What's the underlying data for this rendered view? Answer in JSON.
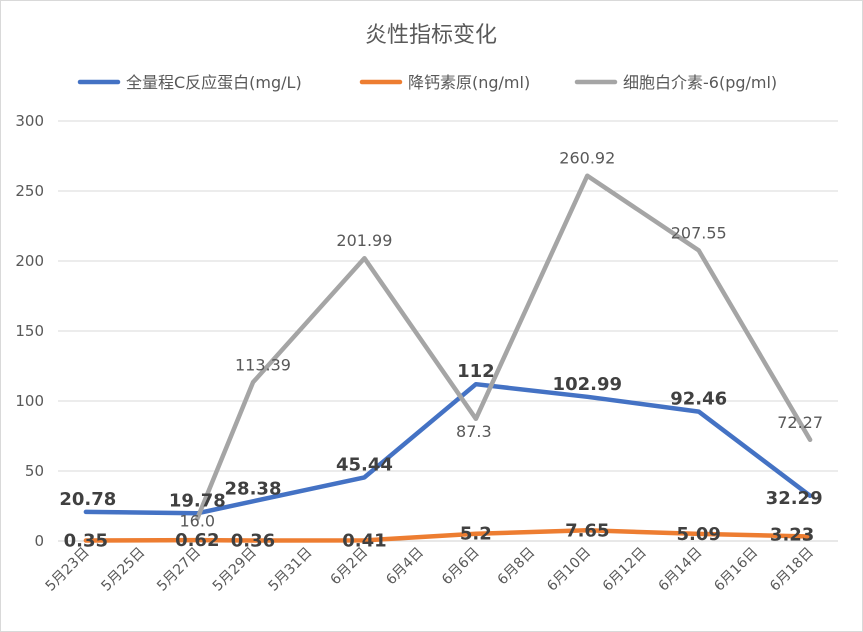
{
  "chart_data": {
    "type": "line",
    "title": "炎性指标变化",
    "categories": [
      "5月23日",
      "5月25日",
      "5月27日",
      "5月29日",
      "5月31日",
      "6月2日",
      "6月4日",
      "6月6日",
      "6月8日",
      "6月10日",
      "6月12日",
      "6月14日",
      "6月16日",
      "6月18日"
    ],
    "x_dates": [
      "5月23日",
      "5月27日",
      "5月29日",
      "6月2日",
      "6月6日",
      "6月10日",
      "6月14日",
      "6月18日"
    ],
    "ylim": [
      0,
      300
    ],
    "yticks": [
      0,
      50,
      100,
      150,
      200,
      250,
      300
    ],
    "grid": true,
    "legend_position": "top",
    "series": [
      {
        "name": "全量程C反应蛋白(mg/L)",
        "color": "#4472c4",
        "points": [
          {
            "x": "5月23日",
            "y": 20.78,
            "label": "20.78"
          },
          {
            "x": "5月27日",
            "y": 19.78,
            "label": "19.78"
          },
          {
            "x": "5月29日",
            "y": 28.38,
            "label": "28.38"
          },
          {
            "x": "6月2日",
            "y": 45.44,
            "label": "45.44"
          },
          {
            "x": "6月6日",
            "y": 112,
            "label": "112"
          },
          {
            "x": "6月10日",
            "y": 102.99,
            "label": "102.99"
          },
          {
            "x": "6月14日",
            "y": 92.46,
            "label": "92.46"
          },
          {
            "x": "6月18日",
            "y": 32.29,
            "label": "32.29"
          }
        ]
      },
      {
        "name": "降钙素原(ng/ml)",
        "color": "#ed7d31",
        "points": [
          {
            "x": "5月23日",
            "y": 0.35,
            "label": "0.35"
          },
          {
            "x": "5月27日",
            "y": 0.62,
            "label": "0.62"
          },
          {
            "x": "5月29日",
            "y": 0.36,
            "label": "0.36"
          },
          {
            "x": "6月2日",
            "y": 0.41,
            "label": "0.41"
          },
          {
            "x": "6月6日",
            "y": 5.2,
            "label": "5.2"
          },
          {
            "x": "6月10日",
            "y": 7.65,
            "label": "7.65"
          },
          {
            "x": "6月14日",
            "y": 5.09,
            "label": "5.09"
          },
          {
            "x": "6月18日",
            "y": 3.23,
            "label": "3.23"
          }
        ]
      },
      {
        "name": "细胞白介素-6(pg/ml)",
        "color": "#a5a5a5",
        "points": [
          {
            "x": "5月27日",
            "y": 16.0,
            "label": "16.0"
          },
          {
            "x": "5月29日",
            "y": 113.39,
            "label": "113.39"
          },
          {
            "x": "6月2日",
            "y": 201.99,
            "label": "201.99"
          },
          {
            "x": "6月6日",
            "y": 87.3,
            "label": "87.3"
          },
          {
            "x": "6月10日",
            "y": 260.92,
            "label": "260.92"
          },
          {
            "x": "6月14日",
            "y": 207.55,
            "label": "207.55"
          },
          {
            "x": "6月18日",
            "y": 72.27,
            "label": "72.27"
          }
        ]
      }
    ]
  }
}
